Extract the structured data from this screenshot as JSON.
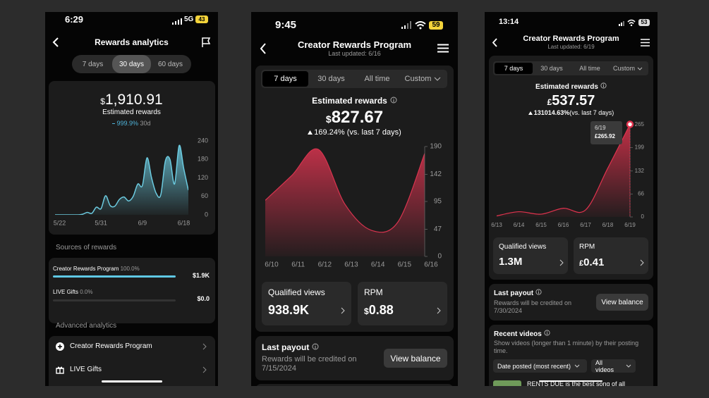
{
  "phones": [
    {
      "status": {
        "time": "6:29",
        "network": "5G",
        "battery": "43"
      },
      "header": {
        "title": "Rewards analytics"
      },
      "tabs": [
        "7 days",
        "30 days",
        "60 days"
      ],
      "active_tab": 1,
      "summary": {
        "currency": "$",
        "amount": "1,910.91",
        "label": "Estimated rewards",
        "change": "999.9%",
        "period": "30d"
      },
      "chart": {
        "type": "area",
        "color": "#6ccbe0",
        "axis_line": false,
        "categories": [
          null,
          "5/22",
          null,
          null,
          null,
          null,
          null,
          null,
          null,
          null,
          "5/31",
          null,
          null,
          null,
          null,
          null,
          null,
          null,
          null,
          "6/9",
          null,
          null,
          null,
          null,
          null,
          null,
          null,
          null,
          "6/18",
          null
        ],
        "values": [
          0,
          0,
          0,
          0,
          0,
          0,
          2,
          8,
          5,
          25,
          20,
          62,
          30,
          28,
          50,
          58,
          45,
          60,
          100,
          95,
          185,
          120,
          70,
          65,
          175,
          180,
          100,
          225,
          150,
          80
        ],
        "ylim": [
          0,
          240
        ],
        "yticks": [
          0,
          60,
          120,
          180,
          240
        ]
      },
      "sources": {
        "title": "Sources of rewards",
        "rows": [
          {
            "name": "Creator Rewards Program",
            "share": {
              "value": 100,
              "label": "100.0%"
            },
            "amount": "$1.9K"
          },
          {
            "name": "LIVE Gifts",
            "share": {
              "value": 0,
              "label": "0.0%"
            },
            "amount": "$0.0"
          }
        ]
      },
      "advanced": {
        "title": "Advanced analytics",
        "items": [
          "Creator Rewards Program",
          "LIVE Gifts"
        ]
      }
    },
    {
      "status": {
        "time": "9:45",
        "battery": "59"
      },
      "header": {
        "title": "Creator Rewards Program",
        "subtitle": "Last updated: 6/16"
      },
      "tabs": [
        "7 days",
        "30 days",
        "All time",
        "Custom"
      ],
      "active_tab": 0,
      "summary": {
        "label": "Estimated rewards",
        "currency": "$",
        "amount": "827.67",
        "change": "169.24%",
        "comparison": "(vs. last 7 days)"
      },
      "chart": {
        "type": "area",
        "color": "#d8344f",
        "axis_line": true,
        "categories": [
          "6/10",
          "6/11",
          "6/12",
          "6/13",
          "6/14",
          "6/15",
          "6/16"
        ],
        "values": [
          97,
          140,
          185,
          90,
          45,
          60,
          178
        ],
        "ylim": [
          0,
          190
        ],
        "yticks": [
          0,
          47,
          95,
          142,
          190
        ]
      },
      "cards": [
        {
          "label": "Qualified views",
          "value": "938.9K"
        },
        {
          "label": "RPM",
          "currency": "$",
          "value": "0.88"
        }
      ],
      "payout": {
        "title": "Last payout",
        "text": "Rewards will be credited on 7/15/2024",
        "button": "View balance"
      }
    },
    {
      "status": {
        "time": "13:14",
        "battery": "53"
      },
      "header": {
        "title": "Creator Rewards Program",
        "subtitle": "Last updated: 6/19"
      },
      "tabs": [
        "7 days",
        "30 days",
        "All time",
        "Custom"
      ],
      "active_tab": 0,
      "summary": {
        "label": "Estimated rewards",
        "currency": "£",
        "amount": "537.57",
        "change": "131014.63%",
        "comparison": "(vs. last 7 days)"
      },
      "chart": {
        "type": "area",
        "color": "#e0334e",
        "axis_line": true,
        "categories": [
          "6/13",
          "6/14",
          "6/15",
          "6/16",
          "6/17",
          "6/18",
          "6/19"
        ],
        "values": [
          3,
          15,
          8,
          25,
          20,
          140,
          265.92
        ],
        "ylim": [
          0,
          265
        ],
        "yticks": [
          0,
          66,
          132,
          199,
          265
        ],
        "tooltip": {
          "index": 6,
          "date": "6/19",
          "label": "£265.92"
        }
      },
      "cards": [
        {
          "label": "Qualified views",
          "value": "1.3M"
        },
        {
          "label": "RPM",
          "currency": "£",
          "value": "0.41"
        }
      ],
      "payout": {
        "title": "Last payout",
        "text": "Rewards will be credited on 7/30/2024",
        "button": "View balance"
      },
      "recent": {
        "title": "Recent videos",
        "text": "Show videos (longer than 1 minute) by their posting time.",
        "sort": "Date posted (most recent)",
        "filter": "All videos",
        "first_video": "RENTS DUE is the best song of all"
      }
    }
  ]
}
